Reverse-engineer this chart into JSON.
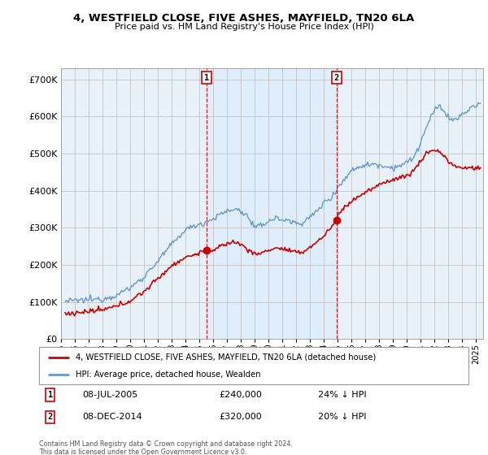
{
  "title": "4, WESTFIELD CLOSE, FIVE ASHES, MAYFIELD, TN20 6LA",
  "subtitle": "Price paid vs. HM Land Registry's House Price Index (HPI)",
  "red_label": "4, WESTFIELD CLOSE, FIVE ASHES, MAYFIELD, TN20 6LA (detached house)",
  "blue_label": "HPI: Average price, detached house, Wealden",
  "annotation1": {
    "label": "1",
    "date": "08-JUL-2005",
    "price": "£240,000",
    "pct": "24% ↓ HPI",
    "x_year": 2005.52,
    "price_val": 240000
  },
  "annotation2": {
    "label": "2",
    "date": "08-DEC-2014",
    "price": "£320,000",
    "pct": "20% ↓ HPI",
    "x_year": 2014.92,
    "price_val": 320000
  },
  "footer": "Contains HM Land Registry data © Crown copyright and database right 2024.\nThis data is licensed under the Open Government Licence v3.0.",
  "red_color": "#cc0000",
  "blue_color": "#6699cc",
  "shade_color": "#ddeeff",
  "background_plot": "#e8f0f8",
  "ylim": [
    0,
    730000
  ],
  "xlim_start": 1995.3,
  "xlim_end": 2025.5,
  "yticks": [
    0,
    100000,
    200000,
    300000,
    400000,
    500000,
    600000,
    700000
  ],
  "xticks": [
    1995,
    1996,
    1997,
    1998,
    1999,
    2000,
    2001,
    2002,
    2003,
    2004,
    2005,
    2006,
    2007,
    2008,
    2009,
    2010,
    2011,
    2012,
    2013,
    2014,
    2015,
    2016,
    2017,
    2018,
    2019,
    2020,
    2021,
    2022,
    2023,
    2024,
    2025
  ]
}
